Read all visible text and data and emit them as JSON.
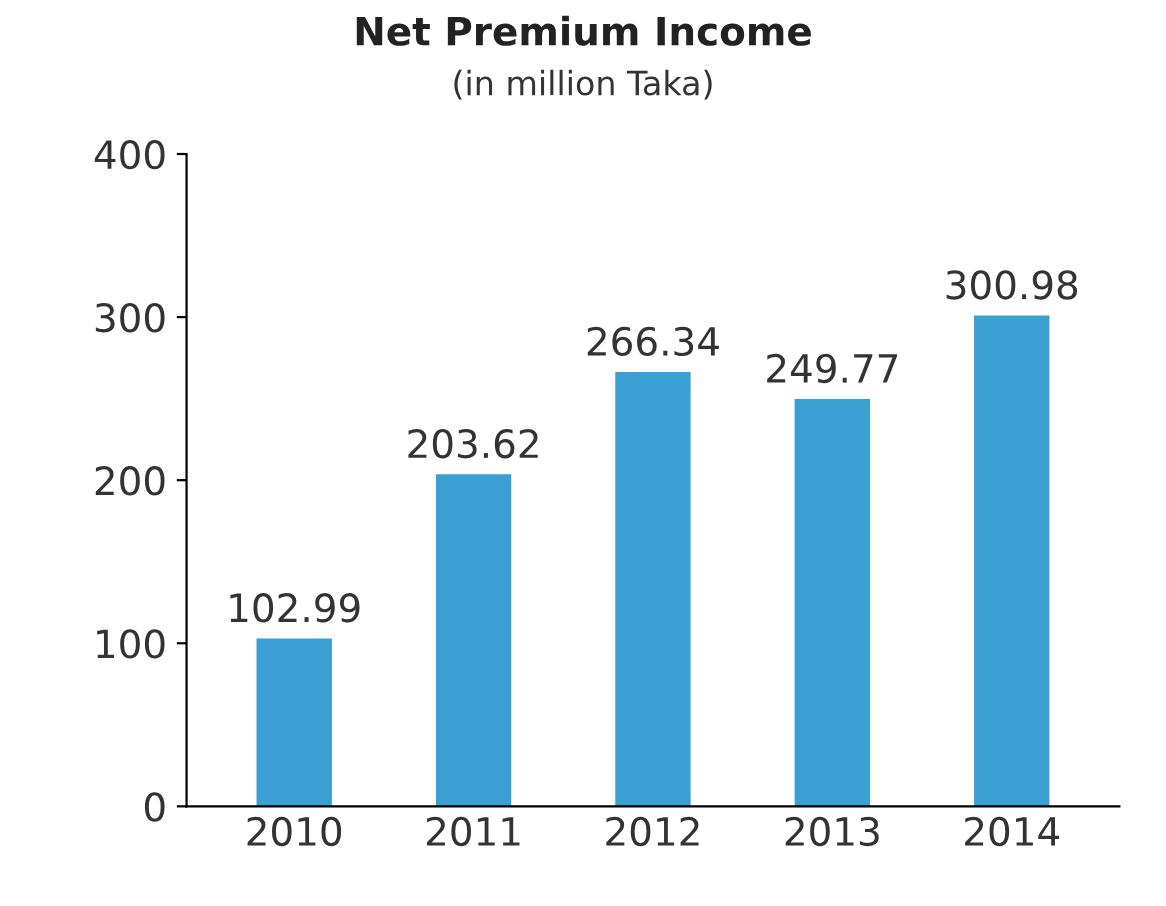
{
  "chart_data": {
    "type": "bar",
    "title": "Net Premium Income",
    "subtitle": "(in million Taka)",
    "categories": [
      "2010",
      "2011",
      "2012",
      "2013",
      "2014"
    ],
    "values": [
      102.99,
      203.62,
      266.34,
      249.77,
      300.98
    ],
    "color": "#3a9fd3",
    "ylim": [
      0,
      400
    ],
    "yticks": [
      0,
      100,
      200,
      300,
      400
    ],
    "data_labels": true,
    "grid": false,
    "legend": false
  }
}
